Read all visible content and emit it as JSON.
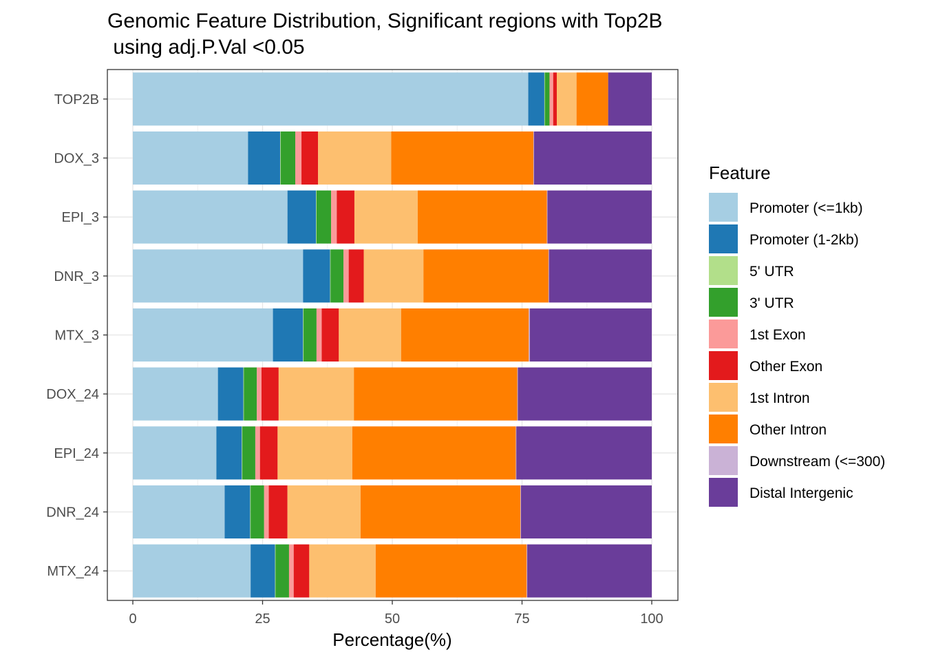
{
  "chart_data": {
    "type": "bar",
    "orientation": "horizontal",
    "stacked": true,
    "title": "Genomic Feature Distribution, Significant regions with Top2B",
    "subtitle": " using adj.P.Val <0.05",
    "xlabel": "Percentage(%)",
    "ylabel": "",
    "xlim": [
      0,
      100
    ],
    "x_ticks": [
      "0",
      "25",
      "50",
      "75",
      "100"
    ],
    "grid": true,
    "legend_position": "right",
    "legend_title": "Feature",
    "categories": [
      "TOP2B",
      "DOX_3",
      "EPI_3",
      "DNR_3",
      "MTX_3",
      "DOX_24",
      "EPI_24",
      "DNR_24",
      "MTX_24"
    ],
    "series": [
      {
        "name": "Promoter (<=1kb)",
        "color": "#A6CEE3",
        "values": [
          76.2,
          22.2,
          29.8,
          32.8,
          27.0,
          16.4,
          16.1,
          17.7,
          22.7
        ]
      },
      {
        "name": "Promoter (1-2kb)",
        "color": "#1F78B4",
        "values": [
          3.1,
          6.2,
          5.5,
          5.2,
          5.8,
          4.9,
          4.9,
          4.9,
          4.7
        ]
      },
      {
        "name": "5' UTR",
        "color": "#B2DF8A",
        "values": [
          0.1,
          0.1,
          0.1,
          0.1,
          0.1,
          0.1,
          0.1,
          0.1,
          0.1
        ]
      },
      {
        "name": "3' UTR",
        "color": "#33A02C",
        "values": [
          0.9,
          2.8,
          2.8,
          2.5,
          2.5,
          2.5,
          2.5,
          2.6,
          2.6
        ]
      },
      {
        "name": "1st Exon",
        "color": "#FB9A99",
        "values": [
          0.7,
          1.2,
          1.1,
          1.0,
          1.0,
          0.9,
          0.9,
          0.9,
          0.9
        ]
      },
      {
        "name": "Other Exon",
        "color": "#E31A1C",
        "values": [
          0.7,
          3.2,
          3.4,
          2.9,
          3.3,
          3.3,
          3.4,
          3.6,
          3.0
        ]
      },
      {
        "name": "1st Intron",
        "color": "#FDBF6F",
        "values": [
          3.8,
          14.1,
          12.2,
          11.5,
          12.0,
          14.5,
          14.4,
          14.1,
          12.8
        ]
      },
      {
        "name": "Other Intron",
        "color": "#FF7F00",
        "values": [
          6.1,
          27.4,
          24.9,
          24.1,
          24.6,
          31.5,
          31.5,
          30.8,
          29.1
        ]
      },
      {
        "name": "Downstream (<=300)",
        "color": "#CAB2D6",
        "values": [
          0.0,
          0.1,
          0.1,
          0.1,
          0.2,
          0.1,
          0.1,
          0.1,
          0.1
        ]
      },
      {
        "name": "Distal Intergenic",
        "color": "#6A3D9A",
        "values": [
          8.4,
          22.7,
          20.1,
          19.8,
          23.5,
          25.8,
          26.1,
          25.2,
          24.0
        ]
      }
    ]
  }
}
